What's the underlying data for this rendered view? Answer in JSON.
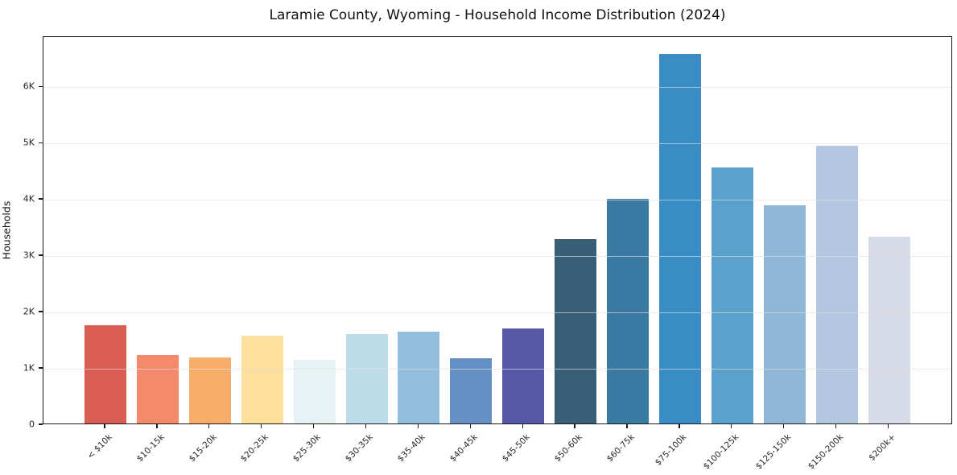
{
  "chart_data": {
    "type": "bar",
    "title": "Laramie County, Wyoming - Household Income Distribution (2024)",
    "xlabel": "",
    "ylabel": "Households",
    "categories": [
      "< $10k",
      "$10-15k",
      "$15-20k",
      "$20-25k",
      "$25-30k",
      "$30-35k",
      "$35-40k",
      "$40-45k",
      "$45-50k",
      "$50-60k",
      "$60-75k",
      "$75-100k",
      "$100-125k",
      "$125-150k",
      "$150-200k",
      "$200k+"
    ],
    "values": [
      1740,
      1210,
      1170,
      1560,
      1130,
      1590,
      1630,
      1160,
      1690,
      3280,
      3990,
      6560,
      4540,
      3870,
      4930,
      3310
    ],
    "bar_colors": [
      "#d95d52",
      "#f4896b",
      "#f8ad6b",
      "#fde09c",
      "#e6f2f3",
      "#bcdcea",
      "#92bedd",
      "#6590c4",
      "#5659a8",
      "#395f76",
      "#3a7aa2",
      "#398dc4",
      "#5aa2cb",
      "#90b6d8",
      "#b3c7e0",
      "#d7dae7"
    ],
    "ylim": [
      0,
      6890
    ],
    "yticks": [
      0,
      1000,
      2000,
      3000,
      4000,
      5000,
      6000
    ],
    "ytick_labels": [
      "0",
      "1K",
      "2K",
      "3K",
      "4K",
      "5K",
      "6K"
    ],
    "grid": "horizontal",
    "legend": "none"
  }
}
